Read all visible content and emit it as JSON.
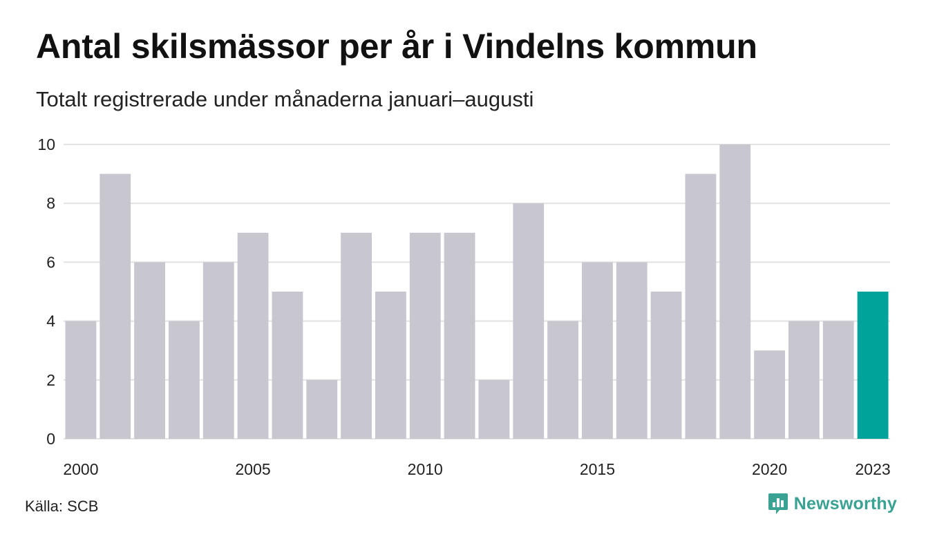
{
  "title": "Antal skilsmässor per år i Vindelns kommun",
  "subtitle": "Totalt registrerade under månaderna januari–augusti",
  "source": "Källa: SCB",
  "brand": {
    "name": "Newsworthy",
    "icon": "newsworthy-logo-icon",
    "color": "#39a293"
  },
  "chart_data": {
    "type": "bar",
    "title": "Antal skilsmässor per år i Vindelns kommun",
    "subtitle": "Totalt registrerade under månaderna januari–augusti",
    "categories": [
      "2000",
      "2001",
      "2002",
      "2003",
      "2004",
      "2005",
      "2006",
      "2007",
      "2008",
      "2009",
      "2010",
      "2011",
      "2012",
      "2013",
      "2014",
      "2015",
      "2016",
      "2017",
      "2018",
      "2019",
      "2020",
      "2021",
      "2022",
      "2023"
    ],
    "values": [
      4,
      9,
      6,
      4,
      6,
      7,
      5,
      2,
      7,
      5,
      7,
      7,
      2,
      8,
      4,
      6,
      6,
      5,
      9,
      10,
      3,
      4,
      4,
      5
    ],
    "x_tick_labels": [
      "2000",
      "2005",
      "2010",
      "2015",
      "2020",
      "2023"
    ],
    "y_ticks": [
      0,
      2,
      4,
      6,
      8,
      10
    ],
    "ylim": [
      0,
      10
    ],
    "xlabel": "",
    "ylabel": "",
    "grid": true,
    "legend": "none",
    "colors": {
      "default": "#c8c7d0",
      "highlight": "#00a39a",
      "highlight_category": "2023",
      "grid": "#e2e2e2"
    }
  }
}
